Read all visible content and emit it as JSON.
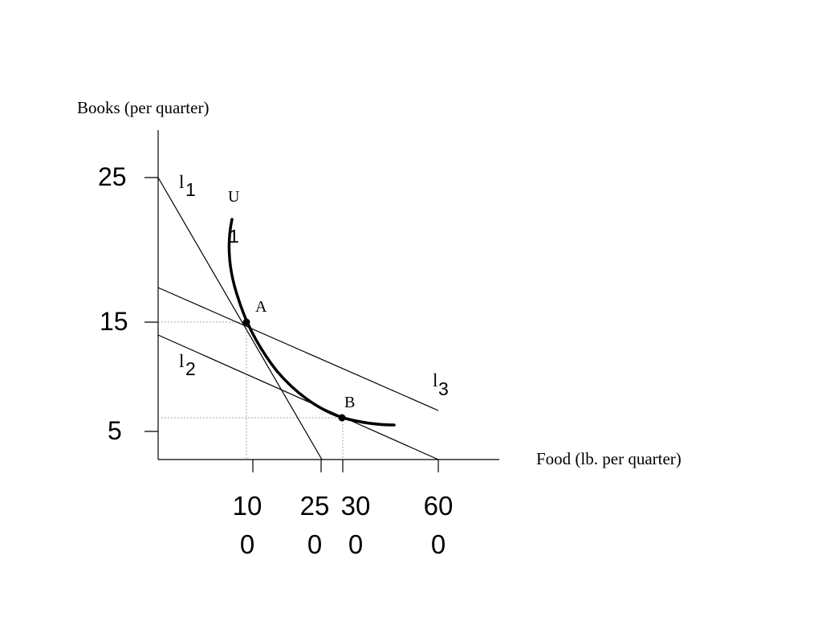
{
  "axes": {
    "y_title": "Books (per quarter)",
    "x_title": "Food (lb. per quarter)",
    "y_ticks": [
      "25",
      "15",
      "5"
    ],
    "x_ticks": [
      {
        "line1": "10",
        "line2": "0"
      },
      {
        "line1": "25",
        "line2": "0"
      },
      {
        "line1": "30",
        "line2": "0"
      },
      {
        "line1": "60",
        "line2": "0"
      }
    ]
  },
  "budget_lines": [
    {
      "letter": "l",
      "sub": "1"
    },
    {
      "letter": "l",
      "sub": "2"
    },
    {
      "letter": "l",
      "sub": "3"
    }
  ],
  "indifference_curve": {
    "letter": "U",
    "sub": "1"
  },
  "points": [
    {
      "label": "A",
      "food": 100,
      "books": 15
    },
    {
      "label": "B",
      "food": 300,
      "books": 6
    }
  ],
  "colors": {
    "ink": "#000000",
    "guide": "#8a8a8a"
  }
}
